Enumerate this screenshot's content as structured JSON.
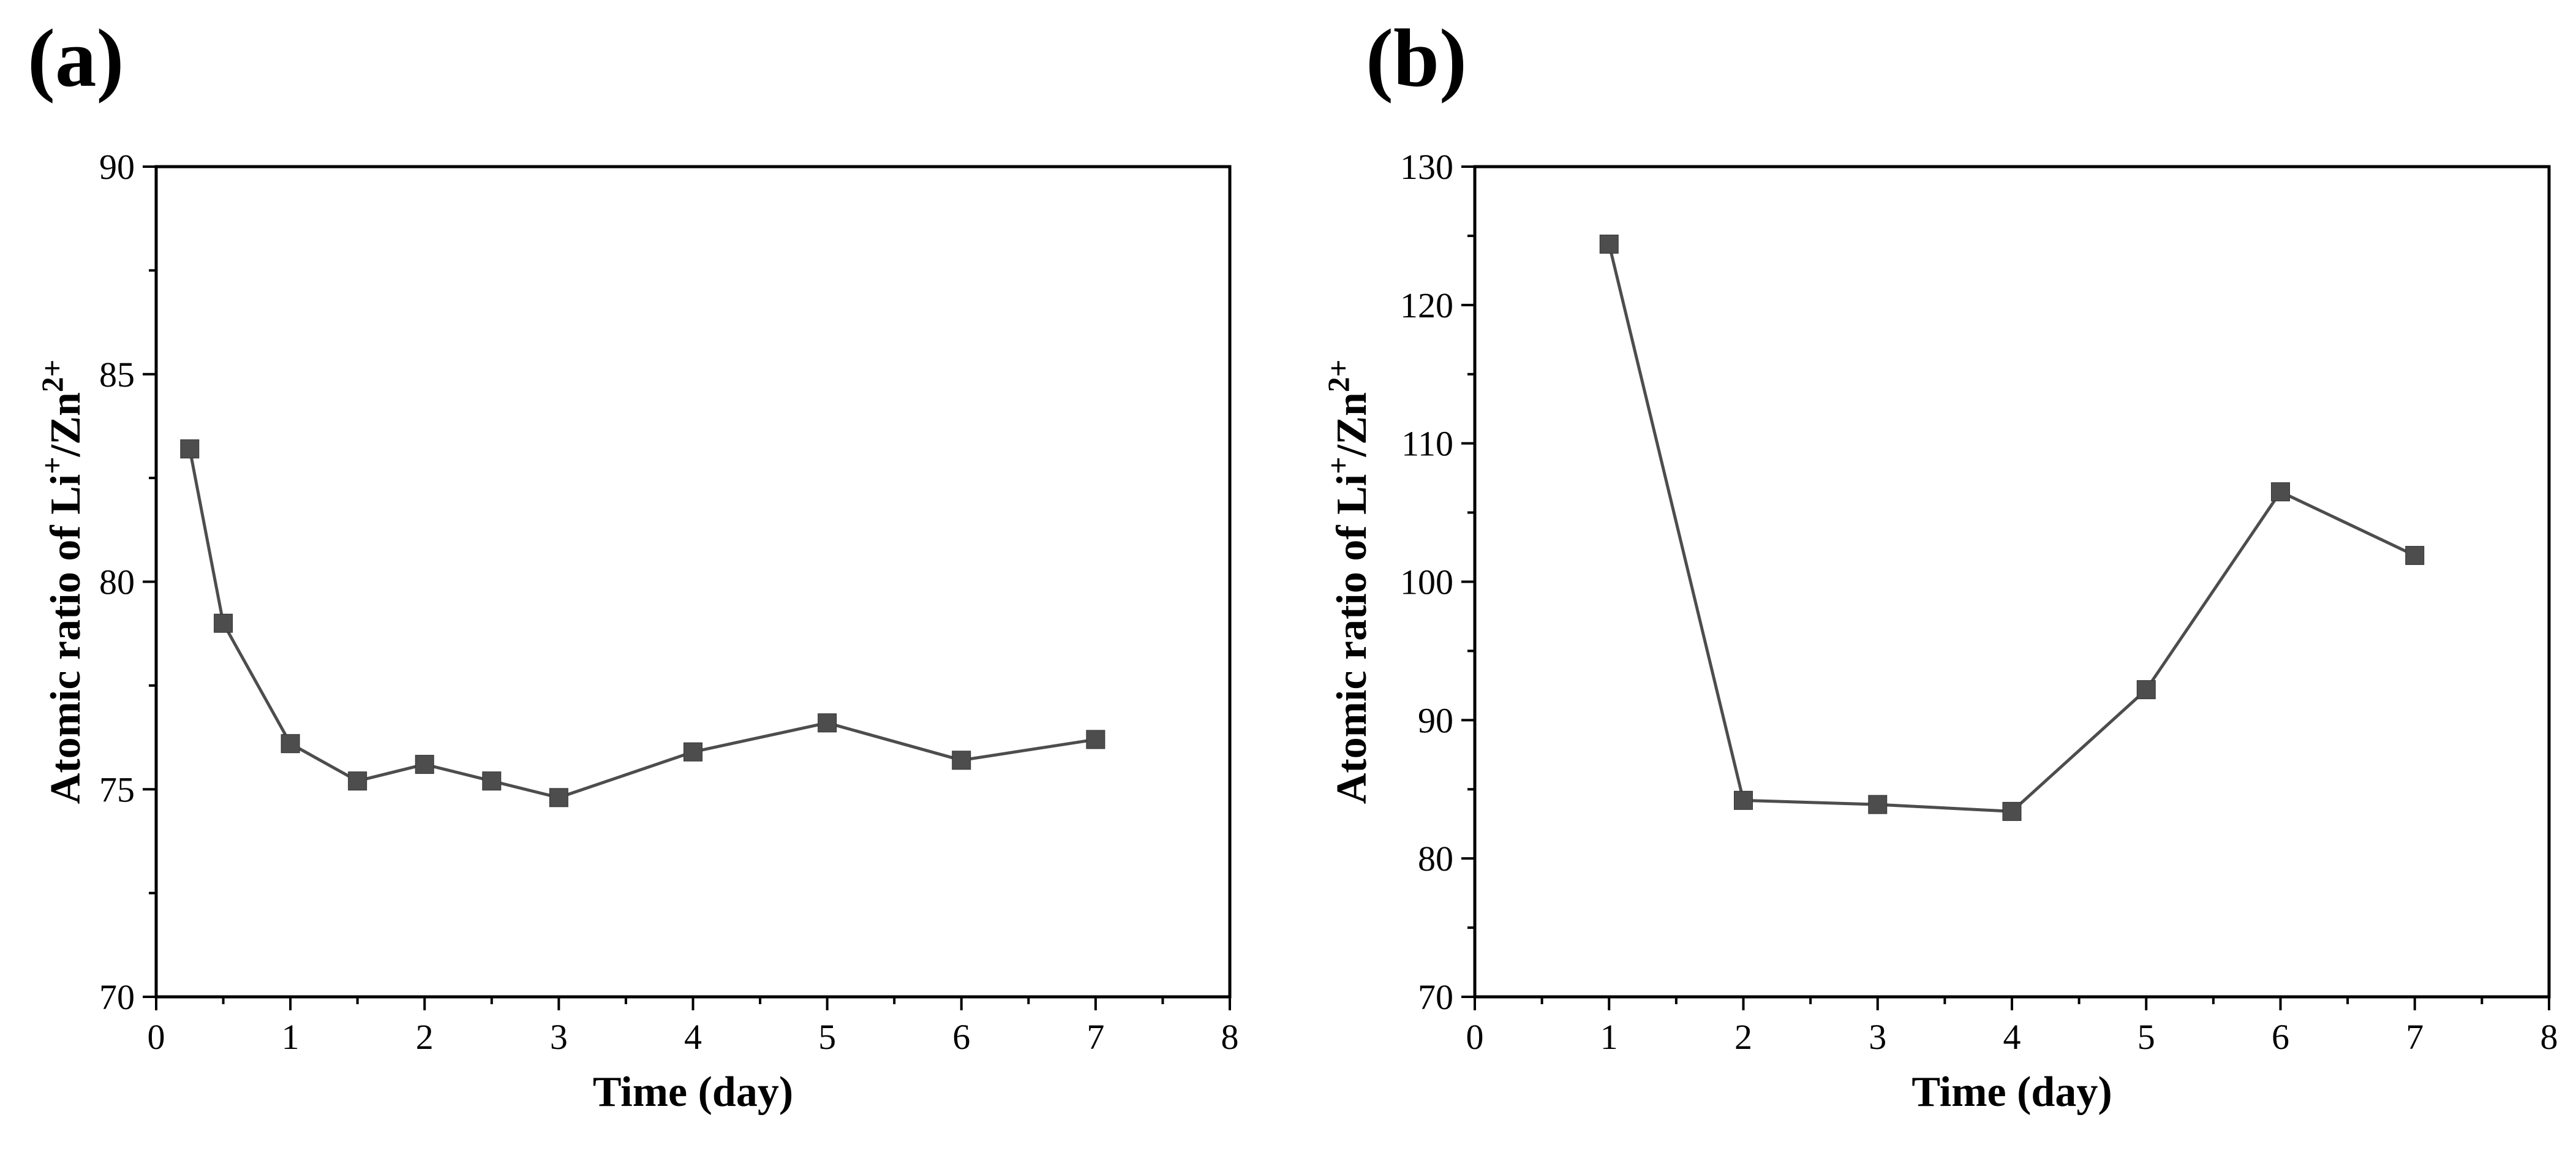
{
  "chart_data": [
    {
      "type": "line",
      "panel": "(a)",
      "xlabel": "Time (day)",
      "ylabel": {
        "prefix": "Atomic ratio of  Li",
        "sup1": "+",
        "mid": "/Zn",
        "sup2": "2+"
      },
      "xlim": [
        0,
        8
      ],
      "ylim": [
        70,
        90
      ],
      "xticks": [
        0,
        1,
        2,
        3,
        4,
        5,
        6,
        7,
        8
      ],
      "yticks": [
        70,
        75,
        80,
        85,
        90
      ],
      "series": [
        {
          "name": "Li+/Zn2+",
          "color": "#4d4d4d",
          "x": [
            0.25,
            0.5,
            1,
            1.5,
            2,
            2.5,
            3,
            4,
            5,
            6,
            7
          ],
          "y": [
            83.2,
            79.0,
            76.1,
            75.2,
            75.6,
            75.2,
            74.8,
            75.9,
            76.6,
            75.7,
            76.2
          ]
        }
      ]
    },
    {
      "type": "line",
      "panel": "(b)",
      "xlabel": "Time (day)",
      "ylabel": {
        "prefix": "Atomic ratio of  Li",
        "sup1": "+",
        "mid": "/Zn",
        "sup2": "2+"
      },
      "xlim": [
        0,
        8
      ],
      "ylim": [
        70,
        130
      ],
      "xticks": [
        0,
        1,
        2,
        3,
        4,
        5,
        6,
        7,
        8
      ],
      "yticks": [
        70,
        80,
        90,
        100,
        110,
        120,
        130
      ],
      "series": [
        {
          "name": "Li+/Zn2+",
          "color": "#4d4d4d",
          "x": [
            1,
            2,
            3,
            4,
            5,
            6,
            7
          ],
          "y": [
            124.4,
            84.2,
            83.9,
            83.4,
            92.2,
            106.5,
            101.9
          ]
        }
      ]
    }
  ]
}
